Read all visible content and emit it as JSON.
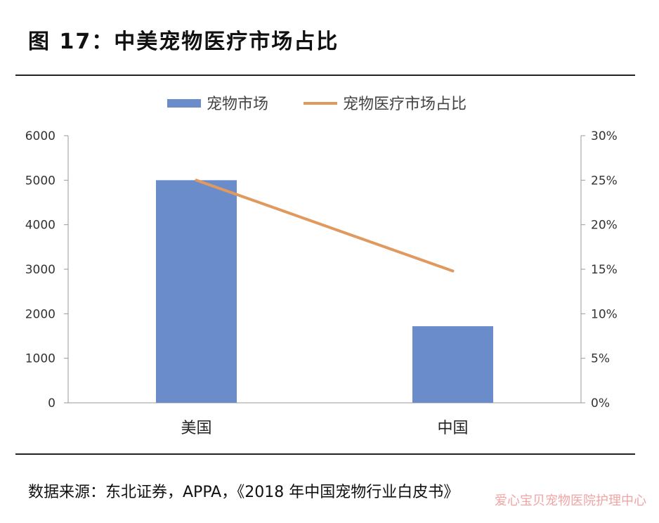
{
  "figure": {
    "title": "图 17：中美宠物医疗市场占比",
    "source": "数据来源：东北证券，APPA，《2018 年中国宠物行业白皮书》",
    "watermark": "爱心宝贝宠物医院护理中心"
  },
  "chart_data": {
    "type": "bar+line",
    "categories": [
      "美国",
      "中国"
    ],
    "series": [
      {
        "name": "宠物市场",
        "kind": "bar",
        "axis": "left",
        "values": [
          5000,
          1720
        ],
        "color": "#6b8cca"
      },
      {
        "name": "宠物医疗市场占比",
        "kind": "line",
        "axis": "right",
        "values": [
          0.25,
          0.148
        ],
        "color": "#e0995e"
      }
    ],
    "y_left": {
      "min": 0,
      "max": 6000,
      "ticks": [
        0,
        1000,
        2000,
        3000,
        4000,
        5000,
        6000
      ]
    },
    "y_right": {
      "min": 0,
      "max": 0.3,
      "ticks": [
        "0%",
        "5%",
        "10%",
        "15%",
        "20%",
        "25%",
        "30%"
      ]
    },
    "legend_position": "top-center",
    "grid": false
  }
}
